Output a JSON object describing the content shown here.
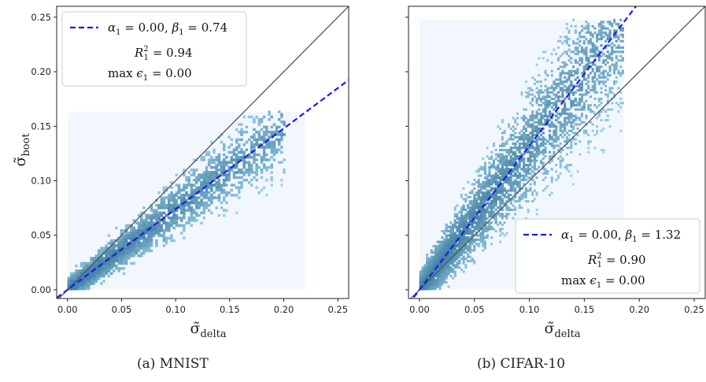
{
  "figure": {
    "captions": [
      "(a) MNIST",
      "(b) CIFAR-10"
    ]
  },
  "chart_data": [
    {
      "type": "heatmap",
      "panel": "a",
      "caption": "(a) MNIST",
      "xlabel": "σ̃_delta",
      "ylabel": "σ̃_boot",
      "xlim": [
        -0.01,
        0.26
      ],
      "ylim": [
        -0.008,
        0.26
      ],
      "xticks": [
        "0.00",
        "0.05",
        "0.10",
        "0.15",
        "0.20",
        "0.25"
      ],
      "yticks": [
        "0.00",
        "0.05",
        "0.10",
        "0.15",
        "0.20",
        "0.25"
      ],
      "xtick_values": [
        0,
        0.05,
        0.1,
        0.15,
        0.2,
        0.25
      ],
      "ytick_values": [
        0,
        0.05,
        0.1,
        0.15,
        0.2,
        0.25
      ],
      "grid": false,
      "show_ylabel": true,
      "show_yticklabels": true,
      "histogram_extent": {
        "x": [
          0,
          0.22
        ],
        "y": [
          0,
          0.163
        ]
      },
      "density_ridge": {
        "x_end": 0.2,
        "slope": 0.74,
        "spread": 0.012
      },
      "identity_line": {
        "color": "#555555"
      },
      "fit_line": {
        "alpha": 0.0,
        "beta": 0.74,
        "color": "#1a1aee",
        "style": "dashed"
      },
      "legend": {
        "position": "upper-left",
        "entry_alpha": "α",
        "entry_alpha_sub": "1",
        "entry_alpha_val": " = 0.00,",
        "entry_beta": "β",
        "entry_beta_sub": "1",
        "entry_beta_val": " = 0.74",
        "r2_text": "R",
        "r2_sub": "1",
        "r2_sup": "2",
        "r2_val": " = 0.94",
        "max_prefix": "max ",
        "max_eps": "ϵ",
        "max_sub": "1",
        "max_val": " = 0.00"
      }
    },
    {
      "type": "heatmap",
      "panel": "b",
      "caption": "(b) CIFAR-10",
      "xlabel": "σ̃_delta",
      "ylabel": "",
      "xlim": [
        -0.01,
        0.26
      ],
      "ylim": [
        -0.008,
        0.26
      ],
      "xticks": [
        "0.00",
        "0.05",
        "0.10",
        "0.15",
        "0.20",
        "0.25"
      ],
      "yticks": [],
      "xtick_values": [
        0,
        0.05,
        0.1,
        0.15,
        0.2,
        0.25
      ],
      "ytick_values": [
        0,
        0.05,
        0.1,
        0.15,
        0.2,
        0.25
      ],
      "grid": false,
      "show_ylabel": false,
      "show_yticklabels": false,
      "histogram_extent": {
        "x": [
          0,
          0.186
        ],
        "y": [
          0,
          0.248
        ]
      },
      "density_ridge": {
        "x_end": 0.186,
        "slope": 1.32,
        "spread": 0.025
      },
      "identity_line": {
        "color": "#555555"
      },
      "fit_line": {
        "alpha": 0.0,
        "beta": 1.32,
        "color": "#1a1aee",
        "style": "dashed"
      },
      "legend": {
        "position": "lower-right",
        "entry_alpha": "α",
        "entry_alpha_sub": "1",
        "entry_alpha_val": " = 0.00,",
        "entry_beta": "β",
        "entry_beta_sub": "1",
        "entry_beta_val": " = 1.32",
        "r2_text": "R",
        "r2_sub": "1",
        "r2_sup": "2",
        "r2_val": " = 0.90",
        "max_prefix": "max ",
        "max_eps": "ϵ",
        "max_sub": "1",
        "max_val": " = 0.00"
      }
    }
  ]
}
